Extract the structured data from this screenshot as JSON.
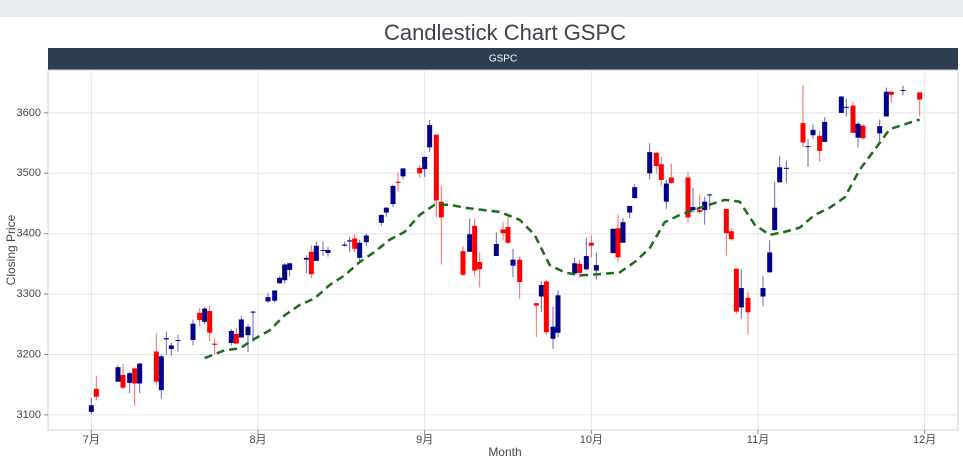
{
  "chart_data": {
    "type": "candlestick",
    "title": "Candlestick Chart GSPC",
    "panel_title": "GSPC",
    "x_label": "Month",
    "y_label": "Closing Price",
    "xlim": [
      6.74,
      12.2
    ],
    "xticks": [
      {
        "value": 7,
        "label": "7月"
      },
      {
        "value": 8,
        "label": "8月"
      },
      {
        "value": 9,
        "label": "9月"
      },
      {
        "value": 10,
        "label": "10月"
      },
      {
        "value": 11,
        "label": "11月"
      },
      {
        "value": 12,
        "label": "12月"
      }
    ],
    "ylim": [
      3075,
      3671
    ],
    "yticks": [
      3100,
      3200,
      3300,
      3400,
      3500,
      3600
    ],
    "grid": true,
    "up_color": "#00008b",
    "down_color": "#ff0000",
    "x": [
      7,
      7.03,
      7.16,
      7.19,
      7.23,
      7.26,
      7.29,
      7.39,
      7.42,
      7.45,
      7.48,
      7.52,
      7.61,
      7.65,
      7.68,
      7.71,
      7.74,
      7.84,
      7.87,
      7.9,
      7.94,
      7.97,
      8.06,
      8.1,
      8.13,
      8.16,
      8.19,
      8.29,
      8.32,
      8.35,
      8.39,
      8.42,
      8.52,
      8.55,
      8.58,
      8.61,
      8.65,
      8.74,
      8.77,
      8.81,
      8.84,
      8.87,
      8.97,
      9,
      9.03,
      9.07,
      9.1,
      9.23,
      9.27,
      9.3,
      9.33,
      9.43,
      9.47,
      9.5,
      9.53,
      9.57,
      9.67,
      9.7,
      9.73,
      9.77,
      9.8,
      9.9,
      9.93,
      9.97,
      10,
      10.03,
      10.13,
      10.16,
      10.19,
      10.23,
      10.26,
      10.35,
      10.39,
      10.42,
      10.45,
      10.48,
      10.58,
      10.61,
      10.65,
      10.68,
      10.71,
      10.81,
      10.84,
      10.87,
      10.9,
      10.94,
      11.03,
      11.07,
      11.1,
      11.13,
      11.17,
      11.27,
      11.3,
      11.33,
      11.37,
      11.4,
      11.5,
      11.53,
      11.57,
      11.6,
      11.63,
      11.73,
      11.77,
      11.8,
      11.87,
      11.97
    ],
    "open": [
      3105,
      3143,
      3155,
      3166,
      3153,
      3177,
      3152,
      3205,
      3141,
      3225,
      3209,
      3224,
      3224,
      3269,
      3254,
      3272,
      3218,
      3219,
      3234,
      3228,
      3232,
      3270,
      3288,
      3289,
      3318,
      3323,
      3340,
      3357,
      3370,
      3355,
      3372,
      3368,
      3380,
      3387,
      3392,
      3360,
      3386,
      3418,
      3435,
      3449,
      3486,
      3495,
      3509,
      3507,
      3543,
      3564,
      3453,
      3371,
      3370,
      3413,
      3353,
      3363,
      3407,
      3411,
      3347,
      3357,
      3285,
      3296,
      3321,
      3226,
      3236,
      3334,
      3350,
      3341,
      3385,
      3339,
      3368,
      3409,
      3385,
      3435,
      3459,
      3500,
      3534,
      3515,
      3453,
      3493,
      3493,
      3439,
      3439,
      3439,
      3464,
      3441,
      3404,
      3342,
      3278,
      3294,
      3296,
      3336,
      3406,
      3485,
      3509,
      3583,
      3544,
      3563,
      3562,
      3552,
      3600,
      3610,
      3612,
      3559,
      3579,
      3566,
      3594,
      3635,
      3638,
      3634
    ],
    "high": [
      3128,
      3165,
      3182,
      3184,
      3171,
      3179,
      3186,
      3235,
      3200,
      3238,
      3220,
      3233,
      3258,
      3277,
      3279,
      3280,
      3228,
      3242,
      3244,
      3264,
      3250,
      3272,
      3302,
      3306,
      3330,
      3351,
      3352,
      3364,
      3381,
      3387,
      3387,
      3378,
      3387,
      3395,
      3399,
      3390,
      3400,
      3432,
      3444,
      3481,
      3501,
      3509,
      3514,
      3528,
      3588,
      3564,
      3479,
      3379,
      3425,
      3425,
      3369,
      3402,
      3419,
      3428,
      3375,
      3362,
      3285,
      3321,
      3324,
      3279,
      3306,
      3360,
      3357,
      3393,
      3397,
      3369,
      3409,
      3432,
      3426,
      3446,
      3482,
      3550,
      3535,
      3527,
      3489,
      3516,
      3502,
      3476,
      3465,
      3461,
      3466,
      3441,
      3409,
      3342,
      3341,
      3305,
      3330,
      3389,
      3486,
      3529,
      3521,
      3646,
      3557,
      3581,
      3570,
      3593,
      3628,
      3624,
      3619,
      3585,
      3581,
      3589,
      3642,
      3636,
      3645,
      3634
    ],
    "low": [
      3101,
      3124,
      3155,
      3142,
      3136,
      3115,
      3136,
      3149,
      3127,
      3200,
      3198,
      3205,
      3215,
      3247,
      3250,
      3222,
      3200,
      3215,
      3218,
      3228,
      3204,
      3220,
      3285,
      3286,
      3317,
      3318,
      3329,
      3335,
      3326,
      3355,
      3363,
      3362,
      3379,
      3370,
      3369,
      3354,
      3380,
      3413,
      3428,
      3444,
      3469,
      3490,
      3493,
      3494,
      3535,
      3427,
      3349,
      3330,
      3370,
      3329,
      3311,
      3363,
      3389,
      3383,
      3328,
      3292,
      3229,
      3270,
      3232,
      3209,
      3228,
      3332,
      3327,
      3340,
      3361,
      3324,
      3367,
      3354,
      3385,
      3426,
      3458,
      3490,
      3500,
      3480,
      3441,
      3483,
      3419,
      3435,
      3433,
      3415,
      3440,
      3364,
      3388,
      3268,
      3259,
      3233,
      3280,
      3336,
      3405,
      3485,
      3484,
      3543,
      3511,
      3557,
      3519,
      3552,
      3600,
      3594,
      3567,
      3543,
      3556,
      3552,
      3594,
      3617,
      3629,
      3594
    ],
    "close": [
      3116,
      3130,
      3179,
      3145,
      3169,
      3152,
      3185,
      3155,
      3197,
      3227,
      3215,
      3224,
      3251,
      3257,
      3276,
      3236,
      3216,
      3239,
      3218,
      3258,
      3246,
      3271,
      3295,
      3306,
      3327,
      3349,
      3351,
      3360,
      3333,
      3380,
      3373,
      3373,
      3382,
      3389,
      3375,
      3385,
      3397,
      3431,
      3443,
      3479,
      3484,
      3508,
      3500,
      3527,
      3580,
      3455,
      3427,
      3332,
      3399,
      3339,
      3341,
      3383,
      3401,
      3385,
      3357,
      3320,
      3281,
      3315,
      3237,
      3246,
      3298,
      3351,
      3335,
      3363,
      3380,
      3348,
      3408,
      3361,
      3419,
      3446,
      3477,
      3535,
      3512,
      3489,
      3483,
      3484,
      3427,
      3444,
      3436,
      3453,
      3465,
      3401,
      3391,
      3271,
      3310,
      3270,
      3310,
      3369,
      3443,
      3510,
      3509,
      3551,
      3545,
      3572,
      3537,
      3585,
      3627,
      3610,
      3567,
      3582,
      3558,
      3578,
      3635,
      3630,
      3638,
      3622
    ],
    "moving_average": {
      "color": "#1a6e1a",
      "x": [
        7.68,
        7.8,
        7.89,
        7.98,
        8.07,
        8.16,
        8.25,
        8.34,
        8.43,
        8.52,
        8.61,
        8.7,
        8.79,
        8.88,
        8.97,
        9.06,
        9.15,
        9.24,
        9.33,
        9.45,
        9.57,
        9.66,
        9.75,
        9.84,
        9.93,
        10.05,
        10.17,
        10.26,
        10.35,
        10.44,
        10.53,
        10.62,
        10.71,
        10.8,
        10.89,
        10.98,
        11.07,
        11.16,
        11.25,
        11.34,
        11.43,
        11.52,
        11.61,
        11.7,
        11.79,
        11.88,
        11.97
      ],
      "values": [
        3194,
        3207,
        3210,
        3226,
        3240,
        3265,
        3282,
        3293,
        3315,
        3331,
        3353,
        3370,
        3390,
        3403,
        3431,
        3448,
        3448,
        3443,
        3440,
        3436,
        3423,
        3398,
        3348,
        3336,
        3331,
        3333,
        3336,
        3353,
        3376,
        3419,
        3431,
        3440,
        3448,
        3456,
        3453,
        3415,
        3398,
        3403,
        3410,
        3431,
        3443,
        3460,
        3506,
        3539,
        3573,
        3581,
        3589
      ]
    }
  }
}
